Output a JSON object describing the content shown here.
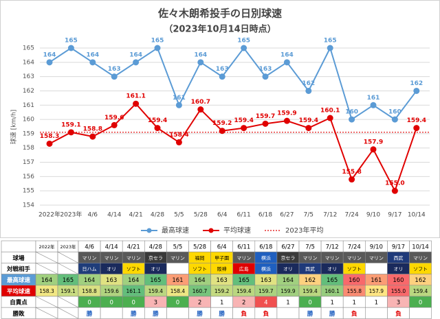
{
  "chart_data": {
    "type": "line",
    "title": "佐々木朗希投手の日別球速",
    "subtitle": "（2023年10月14日時点）",
    "y_label": "球速 [km/h]",
    "categories": [
      "2022年",
      "2023年",
      "4/6",
      "4/14",
      "4/21",
      "4/28",
      "5/5",
      "5/28",
      "6/4",
      "6/11",
      "6/18",
      "6/27",
      "7/5",
      "7/12",
      "7/24",
      "9/10",
      "9/17",
      "10/14"
    ],
    "series": [
      {
        "name": "最高球速",
        "color": "#5b9bd5",
        "values": [
          164,
          165,
          164,
          163,
          164,
          165,
          161,
          164,
          163,
          165,
          163,
          164,
          162,
          165,
          160,
          161,
          160,
          162
        ]
      },
      {
        "name": "平均球速",
        "color": "#e00000",
        "values": [
          158.3,
          159.1,
          158.8,
          159.6,
          161.1,
          159.4,
          158.4,
          160.7,
          159.2,
          159.4,
          159.7,
          159.9,
          159.4,
          160.1,
          155.8,
          157.9,
          155.0,
          159.4
        ],
        "value_labels": [
          "158.3",
          "159.1",
          "158.8",
          "159.6",
          "161.1",
          "159.4",
          "158.4",
          "160.7",
          "159.2",
          "159.4",
          "159.7",
          "159.9",
          "159.4",
          "160.1",
          "155.8",
          "157.9",
          "155.0",
          "159.4"
        ]
      }
    ],
    "reference_line": {
      "name": "2023年平均",
      "value": 159.1,
      "color": "#e00000"
    },
    "ylim": [
      154,
      165
    ],
    "yticks": [
      154,
      155,
      156,
      157,
      158,
      159,
      160,
      161,
      162,
      163,
      164,
      165
    ],
    "grid": true,
    "legend": "bottom"
  },
  "table": {
    "row_labels": [
      "球場",
      "対戦相手",
      "最高球速",
      "平均球速",
      "自責点",
      "勝敗"
    ],
    "stadium": [
      "マリン",
      "マリン",
      "マリン",
      "京セラ",
      "マリン",
      "福岡",
      "甲子園",
      "マリン",
      "横浜",
      "京セラ",
      "マリン",
      "マリン",
      "マリン",
      "マリン",
      "西武",
      "マリン"
    ],
    "stadium_colors": [
      "#595959",
      "#595959",
      "#595959",
      "#3a3a3a",
      "#595959",
      "#ffd800",
      "#ffd800",
      "#595959",
      "#1f5fbf",
      "#3a3a3a",
      "#595959",
      "#595959",
      "#595959",
      "#595959",
      "#1f3a7a",
      "#595959"
    ],
    "opponent": [
      "日ハム",
      "オリ",
      "ソフト",
      "オリ",
      null,
      "ソフト",
      "阪神",
      "広島",
      "横浜",
      "オリ",
      "西武",
      "オリ",
      "ソフト",
      null,
      "オリ",
      "ソフト"
    ],
    "opponent_colors": [
      "#1f3d7a",
      "#1a2a5c",
      "#ffd800",
      "#1a2a5c",
      "#ffffff",
      "#ffd800",
      "#ffd800",
      "#e00000",
      "#1f5fbf",
      "#1a2a5c",
      "#1f3a7a",
      "#1a2a5c",
      "#ffd800",
      "#ffffff",
      "#1a2a5c",
      "#ffd800"
    ],
    "earned_runs": [
      0,
      0,
      0,
      3,
      0,
      2,
      1,
      2,
      4,
      1,
      0,
      1,
      1,
      1,
      3,
      0
    ],
    "result": [
      "勝",
      null,
      "勝",
      "勝",
      null,
      "勝",
      "勝",
      "負",
      "負",
      null,
      "勝",
      "勝",
      "負",
      null,
      "負",
      null
    ]
  }
}
